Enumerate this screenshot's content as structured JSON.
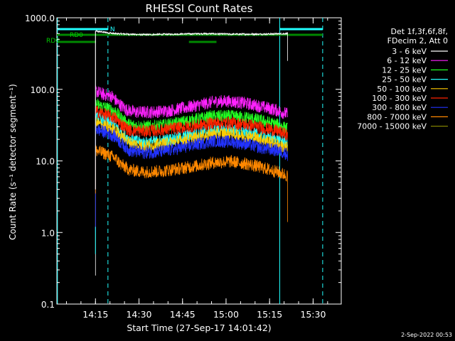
{
  "chart_data": {
    "type": "line",
    "title": "RHESSI Count Rates",
    "xlabel": "Start Time (27-Sep-17 14:01:42)",
    "ylabel": "Count Rate (s⁻¹ detector segment⁻¹)",
    "log_y": true,
    "ylim": [
      0.1,
      1000
    ],
    "xlim_minutes": [
      0,
      98
    ],
    "x_ticks": [
      {
        "label": "14:15",
        "minute": 13.3
      },
      {
        "label": "14:30",
        "minute": 28.3
      },
      {
        "label": "14:45",
        "minute": 43.3
      },
      {
        "label": "15:00",
        "minute": 58.3
      },
      {
        "label": "15:15",
        "minute": 73.3
      },
      {
        "label": "15:30",
        "minute": 88.3
      }
    ],
    "y_ticks": [
      "0.1",
      "1.0",
      "10.0",
      "100.0",
      "1000.0"
    ],
    "legend_header": [
      "Det 1f,3f,6f,8f,",
      "FDecim 2, Att 0"
    ],
    "legend_position": "right",
    "data_start_minute": 13.3,
    "data_end_minute": 79.5,
    "series": [
      {
        "name": "3 - 6 keV",
        "color": "#ffffff",
        "points": [
          [
            13.3,
            650
          ],
          [
            20,
            600
          ],
          [
            30,
            580
          ],
          [
            40,
            590
          ],
          [
            50,
            600
          ],
          [
            60,
            590
          ],
          [
            70,
            590
          ],
          [
            79.5,
            600
          ]
        ],
        "pre_value": 0.25,
        "post_value": 250
      },
      {
        "name": "6 - 12 keV",
        "color": "#ff22ff",
        "points": [
          [
            13.3,
            95
          ],
          [
            16,
            85
          ],
          [
            19,
            80
          ],
          [
            21,
            65
          ],
          [
            24,
            52
          ],
          [
            27,
            48
          ],
          [
            32,
            48
          ],
          [
            38,
            50
          ],
          [
            44,
            55
          ],
          [
            50,
            62
          ],
          [
            55,
            68
          ],
          [
            60,
            68
          ],
          [
            65,
            64
          ],
          [
            70,
            58
          ],
          [
            75,
            52
          ],
          [
            79.5,
            45
          ]
        ],
        "pre_value": null,
        "post_value": null
      },
      {
        "name": "12 - 25 keV",
        "color": "#22ff22",
        "points": [
          [
            13.3,
            62
          ],
          [
            17,
            55
          ],
          [
            20,
            50
          ],
          [
            22,
            40
          ],
          [
            25,
            32
          ],
          [
            30,
            30
          ],
          [
            36,
            31
          ],
          [
            42,
            34
          ],
          [
            48,
            38
          ],
          [
            54,
            42
          ],
          [
            60,
            42
          ],
          [
            66,
            40
          ],
          [
            71,
            36
          ],
          [
            76,
            32
          ],
          [
            79.5,
            28
          ]
        ],
        "pre_value": null,
        "post_value": null
      },
      {
        "name": "25 - 50 keV",
        "color": "#22ffff",
        "points": [
          [
            13.3,
            40
          ],
          [
            17,
            36
          ],
          [
            20,
            32
          ],
          [
            22,
            25
          ],
          [
            25,
            20
          ],
          [
            30,
            18
          ],
          [
            36,
            19
          ],
          [
            42,
            21
          ],
          [
            48,
            24
          ],
          [
            54,
            27
          ],
          [
            60,
            27
          ],
          [
            66,
            25
          ],
          [
            71,
            22
          ],
          [
            76,
            20
          ],
          [
            79.5,
            18
          ]
        ],
        "pre_value": null,
        "post_value": null
      },
      {
        "name": "50 - 100 keV",
        "color": "#ffcc00",
        "points": [
          [
            13.3,
            34
          ],
          [
            17,
            30
          ],
          [
            20,
            27
          ],
          [
            22,
            22
          ],
          [
            25,
            18
          ],
          [
            30,
            16
          ],
          [
            36,
            17
          ],
          [
            42,
            19
          ],
          [
            48,
            21
          ],
          [
            54,
            24
          ],
          [
            60,
            24
          ],
          [
            66,
            22
          ],
          [
            71,
            20
          ],
          [
            76,
            17
          ],
          [
            79.5,
            15
          ]
        ],
        "pre_value": null,
        "post_value": null
      },
      {
        "name": "100 - 300 keV",
        "color": "#ff2200",
        "points": [
          [
            13.3,
            50
          ],
          [
            17,
            44
          ],
          [
            20,
            40
          ],
          [
            22,
            33
          ],
          [
            25,
            27
          ],
          [
            30,
            26
          ],
          [
            36,
            27
          ],
          [
            42,
            29
          ],
          [
            48,
            31
          ],
          [
            54,
            34
          ],
          [
            60,
            34
          ],
          [
            66,
            32
          ],
          [
            71,
            29
          ],
          [
            76,
            26
          ],
          [
            79.5,
            23
          ]
        ],
        "pre_value": null,
        "post_value": null
      },
      {
        "name": "300 - 800 keV",
        "color": "#2233ff",
        "points": [
          [
            13.3,
            28
          ],
          [
            17,
            25
          ],
          [
            20,
            22
          ],
          [
            22,
            18
          ],
          [
            25,
            14
          ],
          [
            30,
            13
          ],
          [
            36,
            13.5
          ],
          [
            42,
            15
          ],
          [
            48,
            17
          ],
          [
            54,
            19
          ],
          [
            60,
            18.5
          ],
          [
            66,
            17
          ],
          [
            71,
            15
          ],
          [
            76,
            14
          ],
          [
            79.5,
            12.5
          ]
        ],
        "pre_value": 1.0,
        "post_value": 10
      },
      {
        "name": "800 - 7000 keV",
        "color": "#ff8800",
        "points": [
          [
            13.3,
            14
          ],
          [
            17,
            12.5
          ],
          [
            20,
            11
          ],
          [
            22,
            9
          ],
          [
            25,
            7.5
          ],
          [
            30,
            7
          ],
          [
            36,
            7.2
          ],
          [
            42,
            7.8
          ],
          [
            48,
            8.5
          ],
          [
            54,
            9.5
          ],
          [
            60,
            9.8
          ],
          [
            66,
            9
          ],
          [
            71,
            8
          ],
          [
            76,
            7
          ],
          [
            79.5,
            6.2
          ]
        ],
        "pre_value": 3.5,
        "post_value": 1.4
      },
      {
        "name": "7000 - 15000 keV",
        "color": "#808000",
        "points": [],
        "pre_value": null,
        "post_value": null
      }
    ],
    "annotations": {
      "attenuator_bars": [
        {
          "label": "RD0",
          "y_px_level": "upper",
          "start_minute": 0.5,
          "end_minute": 12.5
        },
        {
          "label": "RD0",
          "y_px_level": "lower",
          "start_minute": 0.5,
          "end_minute": 13.5
        }
      ],
      "night_label": "N",
      "cyan_solid_lines_minutes": [
        0.2,
        76.8
      ],
      "cyan_dashed_lines_minutes": [
        17.6,
        91.6
      ]
    },
    "grid": false
  },
  "footer": {
    "timestamp": "2-Sep-2022 00:53"
  }
}
